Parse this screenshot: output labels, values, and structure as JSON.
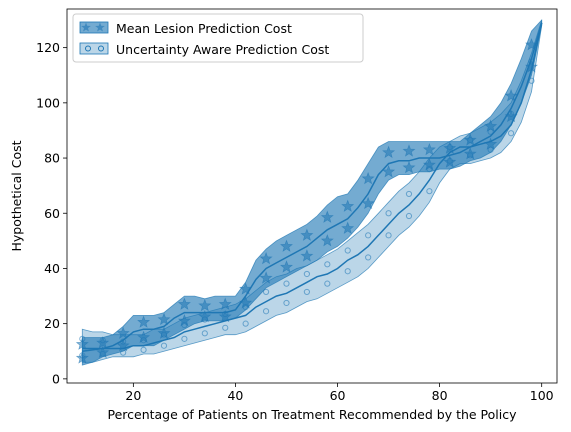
{
  "chart_data": {
    "type": "area",
    "xlabel": "Percentage of Patients on Treatment Recommended by the Policy",
    "ylabel": "Hypothetical Cost",
    "xlim": [
      7,
      103
    ],
    "ylim": [
      -1.5,
      134
    ],
    "x_ticks": [
      20,
      40,
      60,
      80,
      100
    ],
    "y_ticks": [
      0,
      20,
      40,
      60,
      80,
      100,
      120
    ],
    "legend_position": "top-left",
    "grid": false,
    "series": [
      {
        "name": "Mean Lesion Prediction Cost",
        "color": "#1f77b4",
        "marker": "star",
        "x": [
          10,
          12,
          14,
          16,
          18,
          20,
          22,
          24,
          26,
          28,
          30,
          32,
          34,
          36,
          38,
          40,
          42,
          44,
          46,
          48,
          50,
          52,
          54,
          56,
          58,
          60,
          62,
          64,
          66,
          68,
          70,
          72,
          74,
          76,
          78,
          80,
          82,
          84,
          86,
          88,
          90,
          92,
          94,
          96,
          98,
          100
        ],
        "mean": [
          10,
          10.5,
          11,
          12,
          14,
          17,
          18,
          18,
          19,
          22,
          24,
          24,
          24,
          24,
          24,
          25,
          30,
          36,
          40,
          42,
          44,
          46,
          48,
          51,
          54,
          56,
          58,
          62,
          67,
          74,
          78,
          79,
          79,
          80,
          80,
          80,
          81,
          82,
          84,
          86,
          88,
          92,
          98,
          106,
          116,
          129
        ],
        "lower": [
          5,
          6,
          8,
          9,
          10,
          12,
          12,
          12,
          14,
          16,
          18,
          20,
          21,
          21,
          21,
          22,
          25,
          29,
          33,
          35,
          37,
          39,
          41,
          43,
          46,
          48,
          51,
          55,
          60,
          67,
          72,
          74,
          74,
          75,
          75,
          76,
          76,
          77,
          79,
          80,
          82,
          86,
          92,
          100,
          110,
          128
        ],
        "upper": [
          15,
          15,
          15,
          16,
          19,
          23,
          23,
          23,
          24,
          27,
          30,
          30,
          29,
          30,
          30,
          30,
          35,
          43,
          47,
          50,
          52,
          54,
          56,
          59,
          63,
          66,
          67,
          72,
          78,
          84,
          86,
          86,
          86,
          86,
          86,
          86,
          86,
          86,
          89,
          92,
          95,
          100,
          107,
          116,
          126,
          130
        ]
      },
      {
        "name": "Uncertainty Aware Prediction Cost",
        "color": "#1f77b4",
        "marker": "circle",
        "x": [
          10,
          12,
          14,
          16,
          18,
          20,
          22,
          24,
          26,
          28,
          30,
          32,
          34,
          36,
          38,
          40,
          42,
          44,
          46,
          48,
          50,
          52,
          54,
          56,
          58,
          60,
          62,
          64,
          66,
          68,
          70,
          72,
          74,
          76,
          78,
          80,
          82,
          84,
          86,
          88,
          90,
          92,
          94,
          96,
          98,
          100
        ],
        "mean": [
          11,
          11,
          11,
          11,
          11,
          12,
          12,
          13,
          14,
          15,
          17,
          18,
          19,
          20,
          21,
          22,
          23,
          26,
          28,
          30,
          31,
          33,
          35,
          37,
          38,
          40,
          43,
          45,
          48,
          52,
          56,
          60,
          63,
          67,
          72,
          78,
          82,
          84,
          84,
          85,
          86,
          88,
          92,
          100,
          112,
          129
        ],
        "lower": [
          6,
          6,
          7,
          8,
          8,
          8,
          9,
          9,
          10,
          11,
          12,
          13,
          14,
          15,
          16,
          16,
          17,
          19,
          21,
          23,
          24,
          26,
          28,
          29,
          31,
          33,
          35,
          37,
          40,
          44,
          48,
          52,
          55,
          59,
          64,
          71,
          76,
          78,
          78,
          79,
          80,
          82,
          86,
          93,
          104,
          128
        ],
        "upper": [
          18,
          17,
          17,
          16,
          16,
          16,
          16,
          18,
          18,
          20,
          22,
          23,
          24,
          25,
          26,
          27,
          29,
          32,
          35,
          37,
          38,
          40,
          41,
          43,
          45,
          47,
          50,
          53,
          56,
          60,
          64,
          68,
          71,
          75,
          80,
          84,
          86,
          88,
          89,
          91,
          93,
          96,
          100,
          108,
          118,
          130
        ]
      }
    ]
  }
}
